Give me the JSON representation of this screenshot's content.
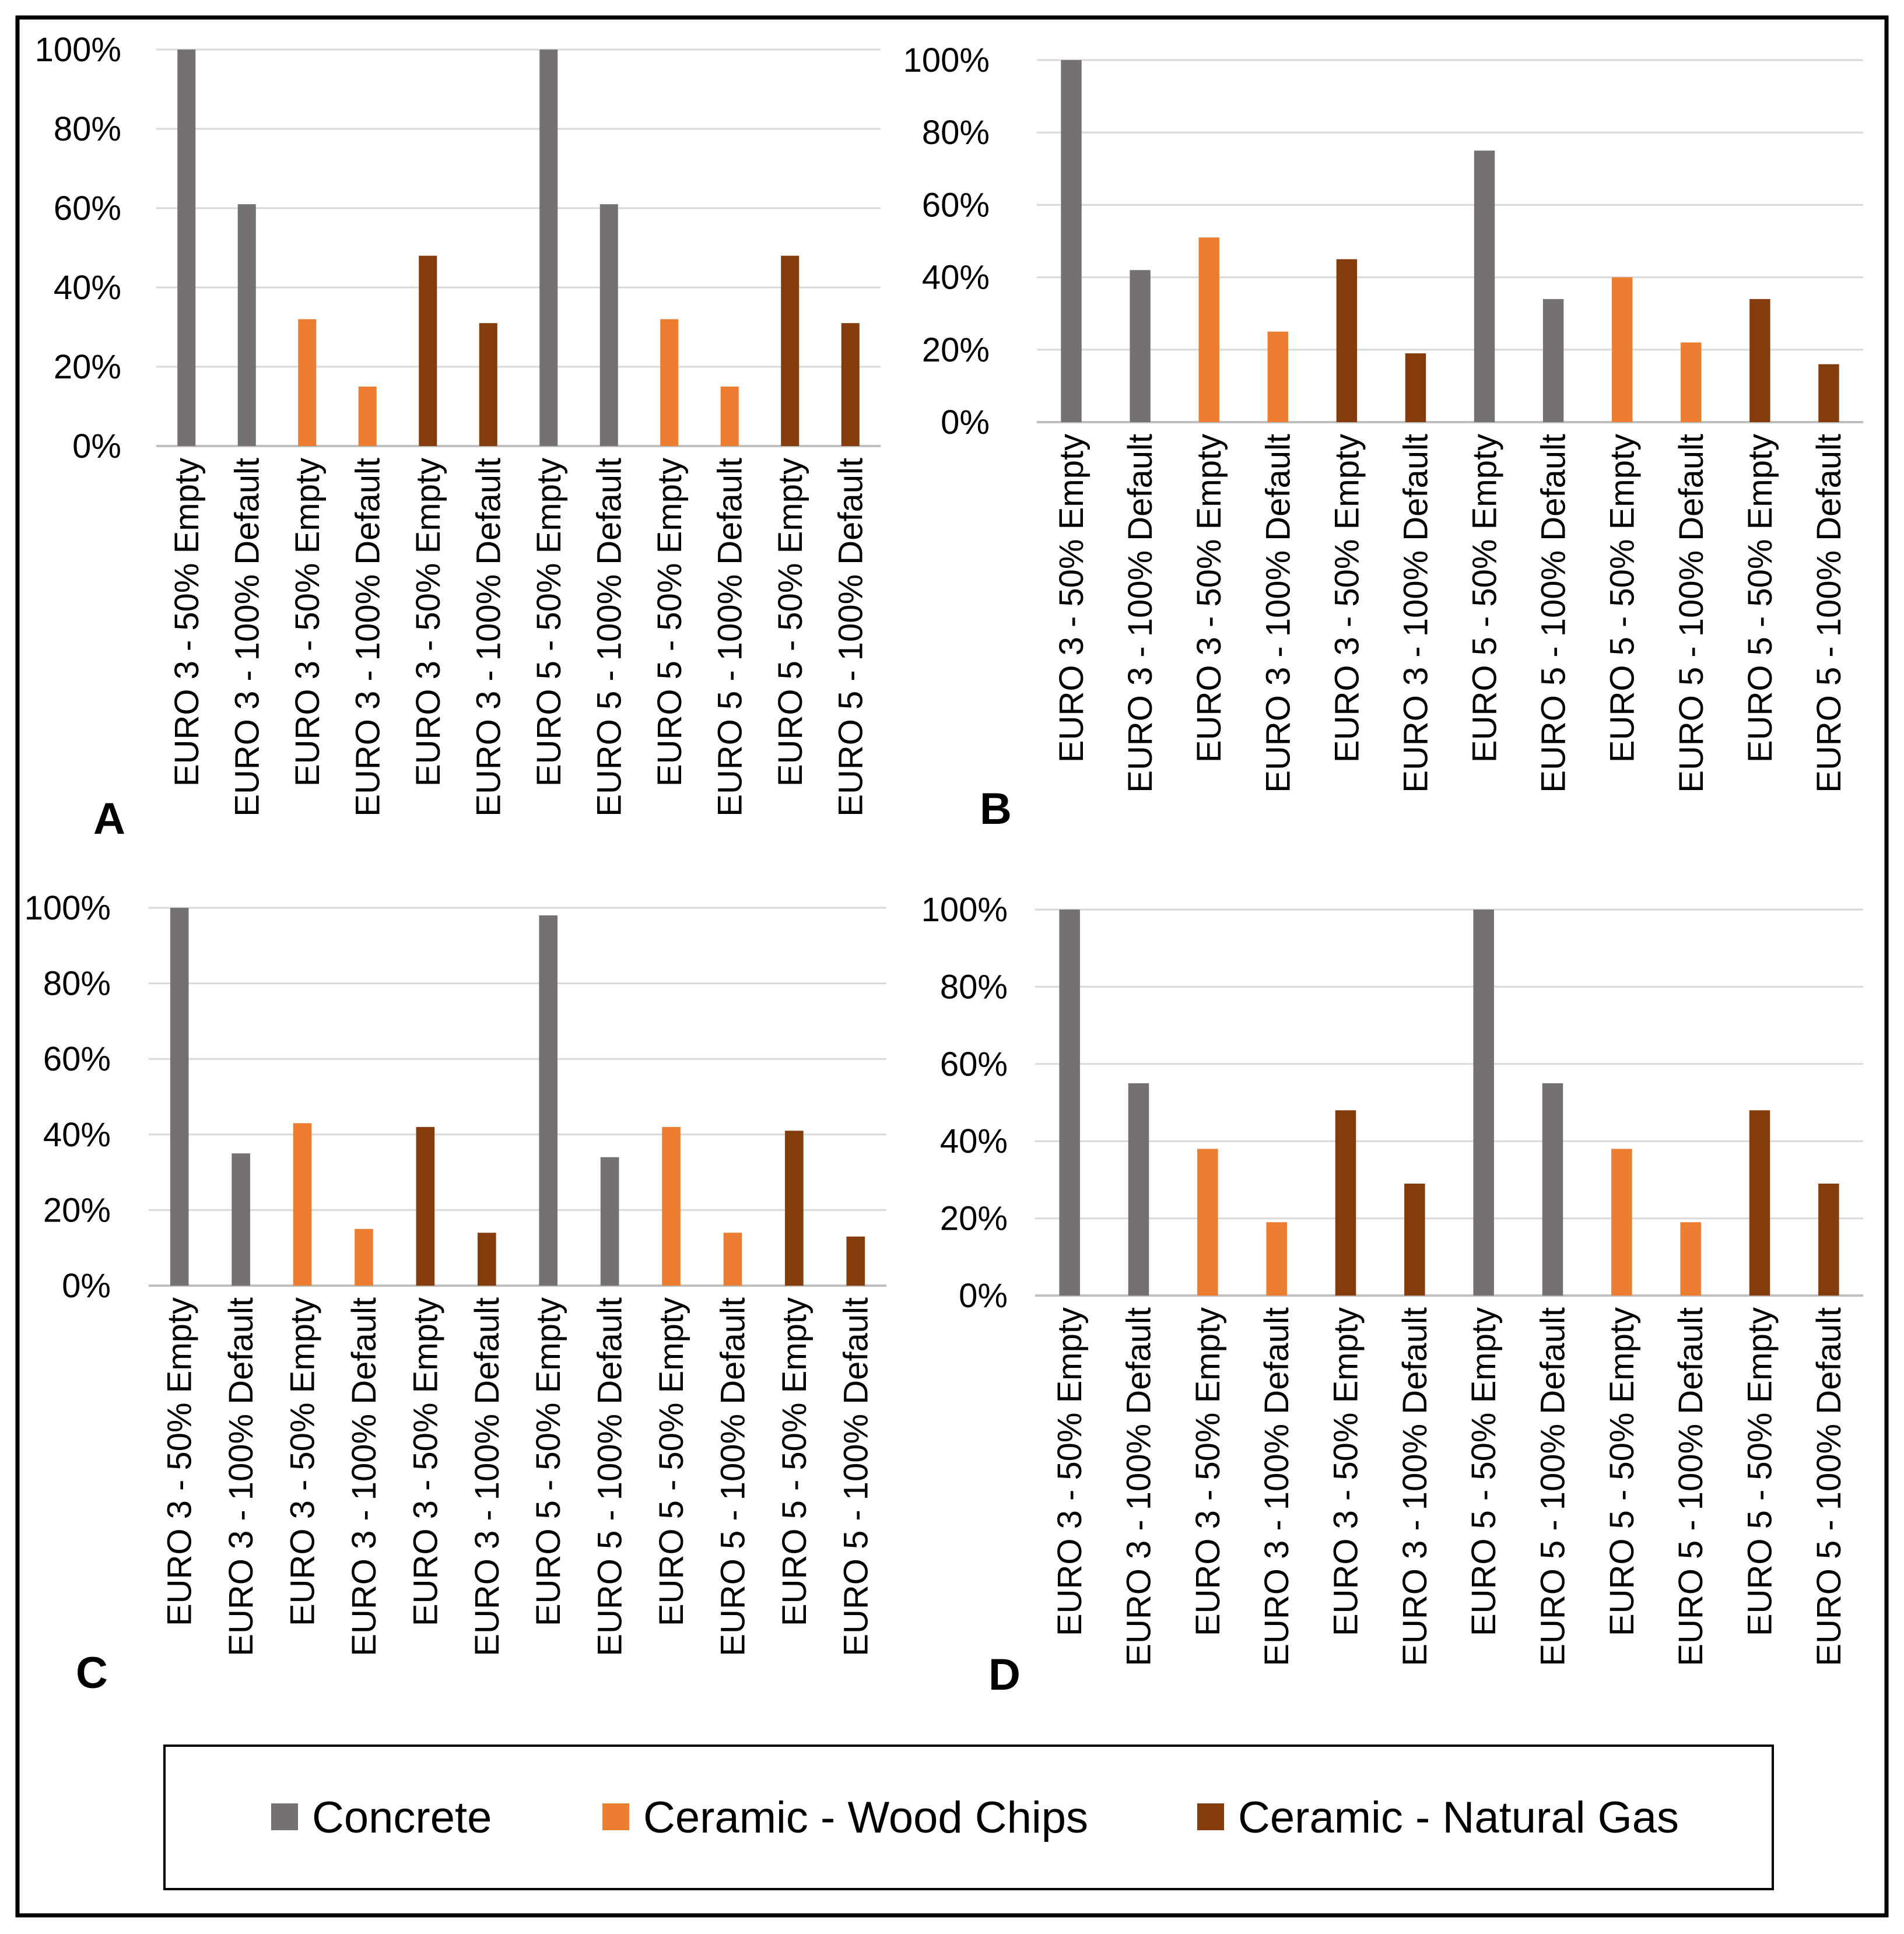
{
  "series_colors": {
    "concrete": "#767171",
    "wood_chips": "#ed7d31",
    "natural_gas": "#843c0c"
  },
  "legend": [
    {
      "key": "concrete",
      "label": "Concrete"
    },
    {
      "key": "wood_chips",
      "label": "Ceramic - Wood Chips"
    },
    {
      "key": "natural_gas",
      "label": "Ceramic - Natural Gas"
    }
  ],
  "chart_data": [
    {
      "panel": "A",
      "type": "bar",
      "ylim": [
        0,
        100
      ],
      "yticks": [
        "0%",
        "20%",
        "40%",
        "60%",
        "80%",
        "100%"
      ],
      "categories": [
        "EURO 3 - 50% Empty",
        "EURO 3 - 100% Default",
        "EURO 3 - 50% Empty",
        "EURO 3 - 100% Default",
        "EURO 3 - 50% Empty",
        "EURO 3 - 100% Default",
        "EURO 5 - 50% Empty",
        "EURO 5 - 100% Default",
        "EURO 5 - 50% Empty",
        "EURO 5 - 100% Default",
        "EURO 5 - 50% Empty",
        "EURO 5 - 100% Default"
      ],
      "bar_series": [
        "concrete",
        "concrete",
        "wood_chips",
        "wood_chips",
        "natural_gas",
        "natural_gas",
        "concrete",
        "concrete",
        "wood_chips",
        "wood_chips",
        "natural_gas",
        "natural_gas"
      ],
      "values": [
        100,
        61,
        32,
        15,
        48,
        31,
        100,
        61,
        32,
        15,
        48,
        31
      ]
    },
    {
      "panel": "B",
      "type": "bar",
      "ylim": [
        0,
        100
      ],
      "yticks": [
        "0%",
        "20%",
        "40%",
        "60%",
        "80%",
        "100%"
      ],
      "categories": [
        "EURO 3 - 50% Empty",
        "EURO 3 - 100% Default",
        "EURO 3 - 50% Empty",
        "EURO 3 - 100% Default",
        "EURO 3 - 50% Empty",
        "EURO 3 - 100% Default",
        "EURO 5 - 50% Empty",
        "EURO 5 - 100% Default",
        "EURO 5 - 50% Empty",
        "EURO 5 - 100% Default",
        "EURO 5 - 50% Empty",
        "EURO 5 - 100% Default"
      ],
      "bar_series": [
        "concrete",
        "concrete",
        "wood_chips",
        "wood_chips",
        "natural_gas",
        "natural_gas",
        "concrete",
        "concrete",
        "wood_chips",
        "wood_chips",
        "natural_gas",
        "natural_gas"
      ],
      "values": [
        100,
        42,
        51,
        25,
        45,
        19,
        75,
        34,
        40,
        22,
        34,
        16
      ]
    },
    {
      "panel": "C",
      "type": "bar",
      "ylim": [
        0,
        100
      ],
      "yticks": [
        "0%",
        "20%",
        "40%",
        "60%",
        "80%",
        "100%"
      ],
      "categories": [
        "EURO 3 - 50% Empty",
        "EURO 3 - 100% Default",
        "EURO 3 - 50% Empty",
        "EURO 3 - 100% Default",
        "EURO 3 - 50% Empty",
        "EURO 3 - 100% Default",
        "EURO 5 - 50% Empty",
        "EURO 5 - 100% Default",
        "EURO 5 - 50% Empty",
        "EURO 5 - 100% Default",
        "EURO 5 - 50% Empty",
        "EURO 5 - 100% Default"
      ],
      "bar_series": [
        "concrete",
        "concrete",
        "wood_chips",
        "wood_chips",
        "natural_gas",
        "natural_gas",
        "concrete",
        "concrete",
        "wood_chips",
        "wood_chips",
        "natural_gas",
        "natural_gas"
      ],
      "values": [
        100,
        35,
        43,
        15,
        42,
        14,
        98,
        34,
        42,
        14,
        41,
        13
      ]
    },
    {
      "panel": "D",
      "type": "bar",
      "ylim": [
        0,
        100
      ],
      "yticks": [
        "0%",
        "20%",
        "40%",
        "60%",
        "80%",
        "100%"
      ],
      "categories": [
        "EURO 3 - 50% Empty",
        "EURO 3 - 100% Default",
        "EURO 3 - 50% Empty",
        "EURO 3 - 100% Default",
        "EURO 3 - 50% Empty",
        "EURO 3 - 100% Default",
        "EURO 5 - 50% Empty",
        "EURO 5 - 100% Default",
        "EURO 5 - 50% Empty",
        "EURO 5 - 100% Default",
        "EURO 5 - 50% Empty",
        "EURO 5 - 100% Default"
      ],
      "bar_series": [
        "concrete",
        "concrete",
        "wood_chips",
        "wood_chips",
        "natural_gas",
        "natural_gas",
        "concrete",
        "concrete",
        "wood_chips",
        "wood_chips",
        "natural_gas",
        "natural_gas"
      ],
      "values": [
        100,
        55,
        38,
        19,
        48,
        29,
        100,
        55,
        38,
        19,
        48,
        29
      ]
    }
  ]
}
